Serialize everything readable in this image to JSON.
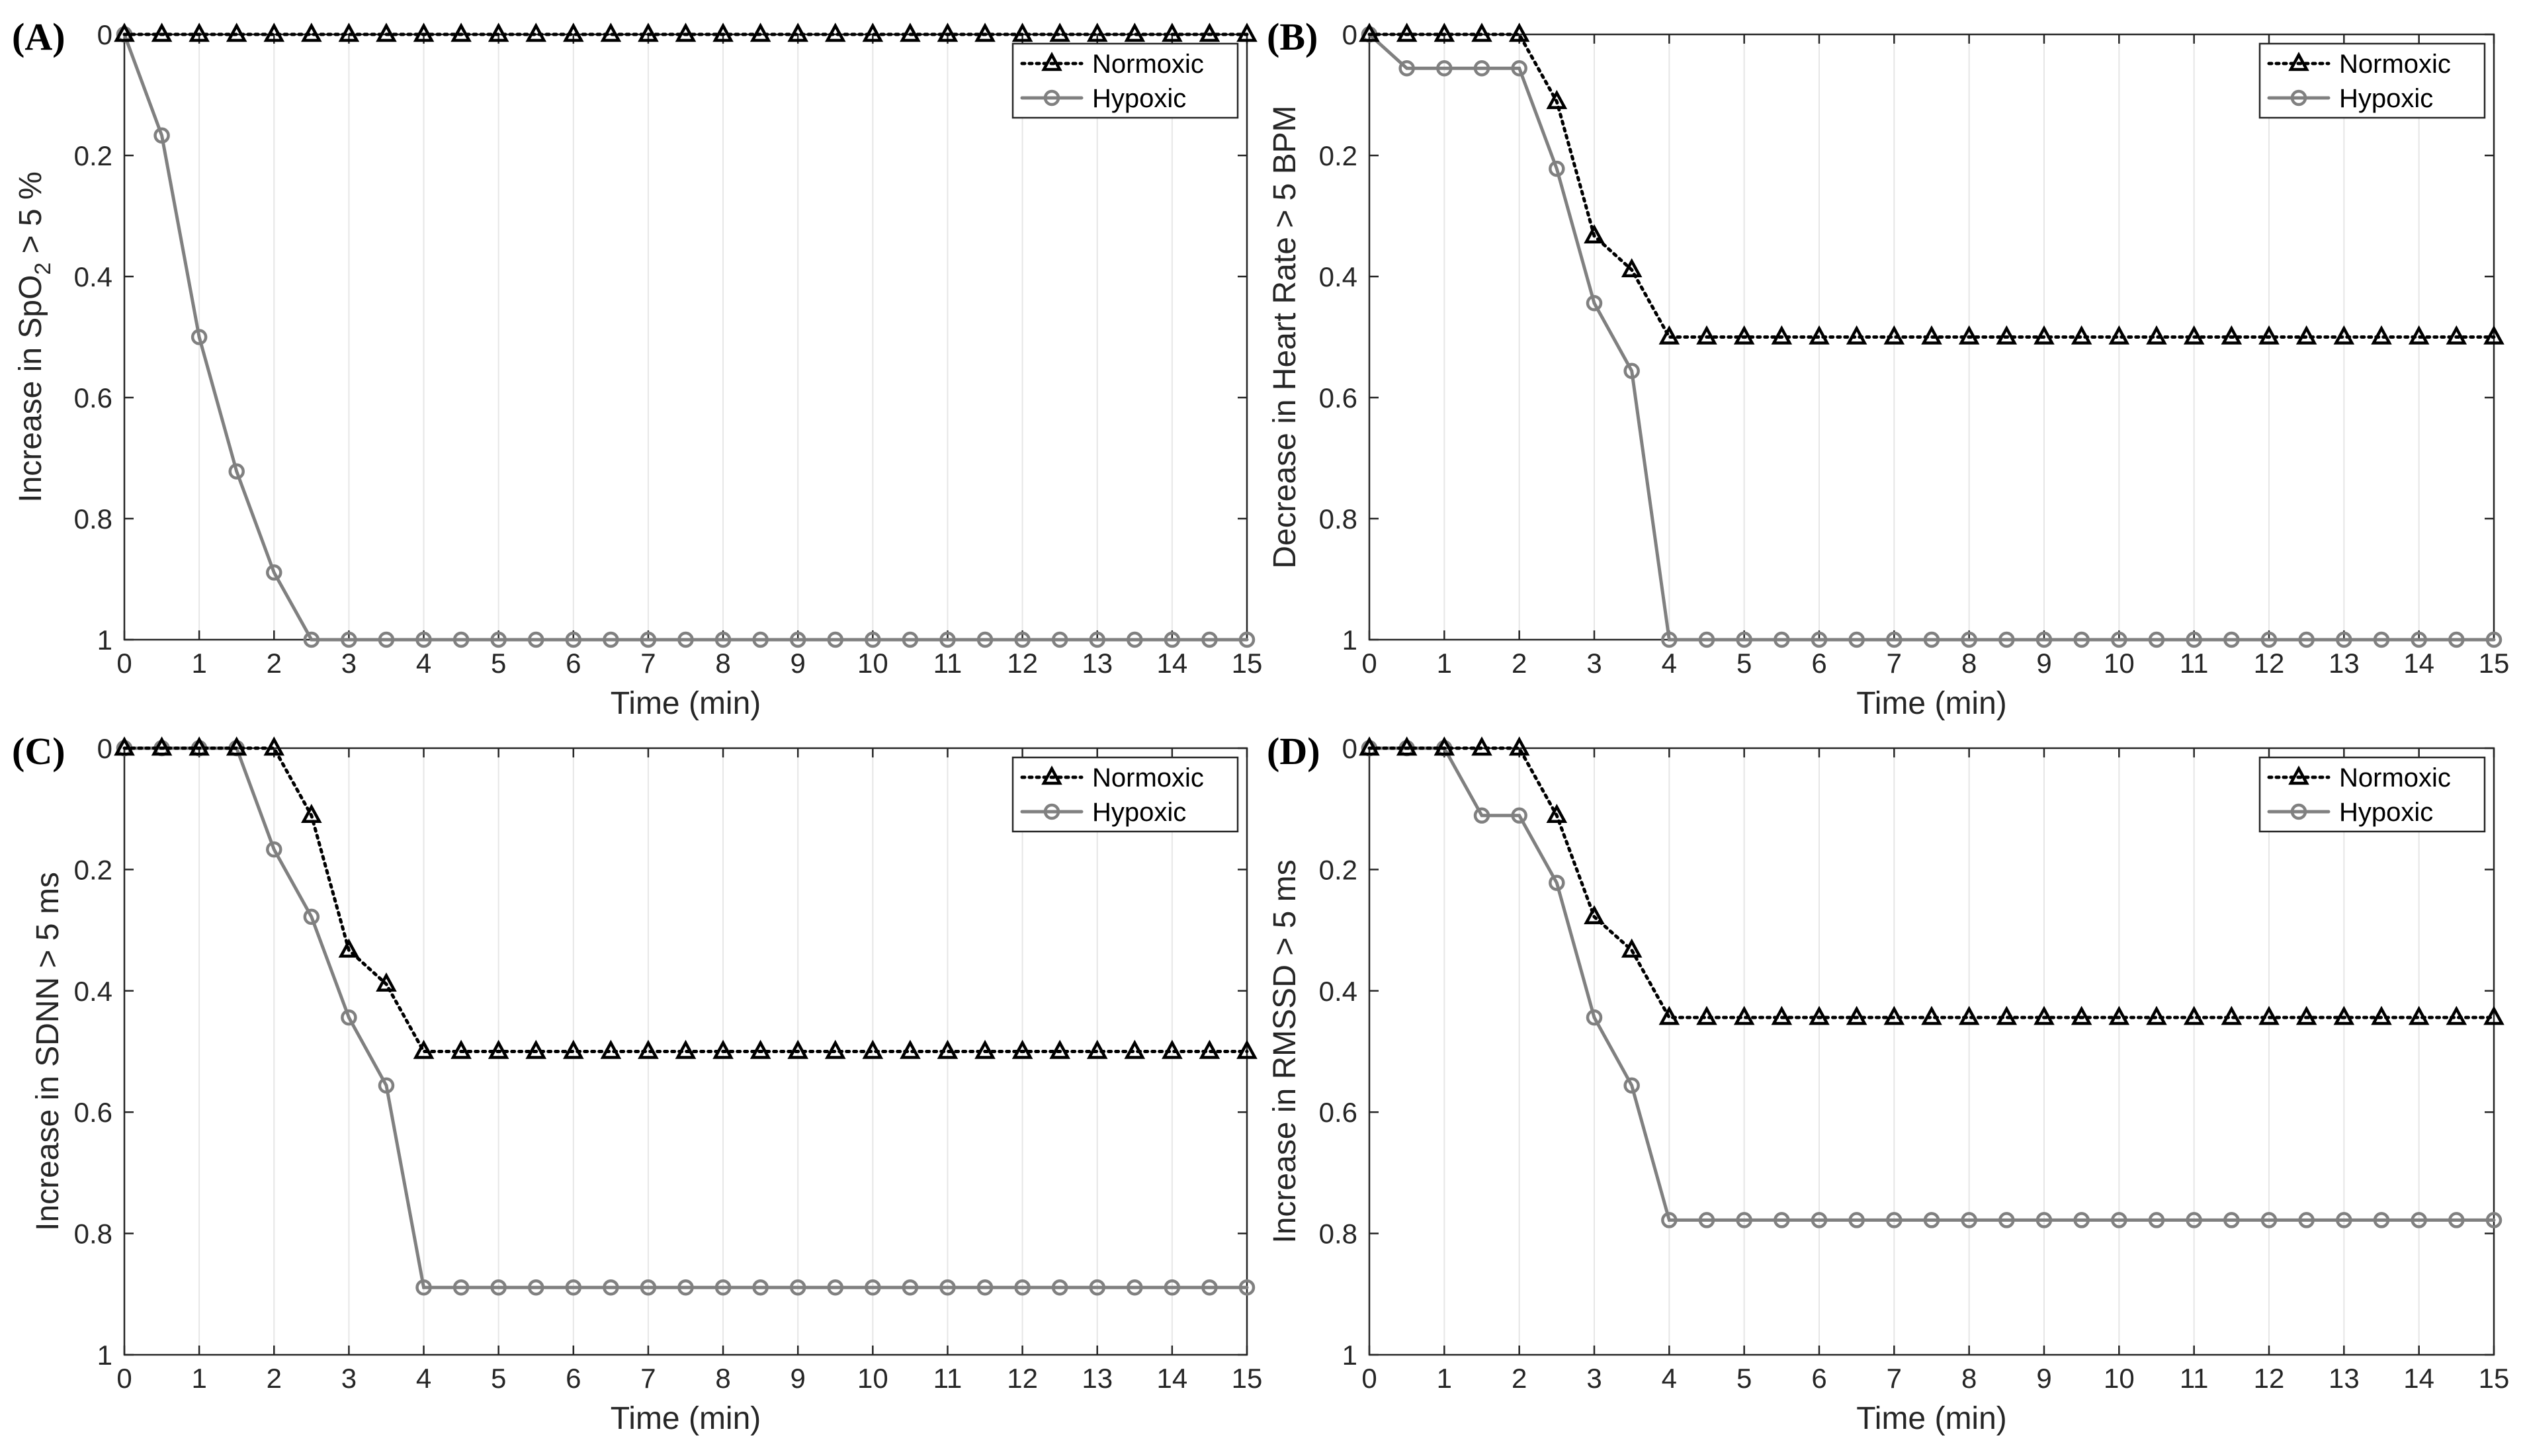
{
  "figure": {
    "x_label": "Time (min)",
    "colors": {
      "normoxic": "#000000",
      "hypoxic": "#808080",
      "grid": "#e6e6e6",
      "axes": "#262626"
    }
  },
  "chart_data": [
    {
      "type": "line",
      "panel": "(A)",
      "xlabel": "Time (min)",
      "ylabel_parts": [
        "Increase in SpO",
        "2",
        " > 5 %"
      ],
      "xlim": [
        0,
        15
      ],
      "ylim": [
        0,
        1
      ],
      "y_reversed": true,
      "xticks": [
        0,
        1,
        2,
        3,
        4,
        5,
        6,
        7,
        8,
        9,
        10,
        11,
        12,
        13,
        14,
        15
      ],
      "yticks": [
        0,
        0.2,
        0.4,
        0.6,
        0.8,
        1
      ],
      "ytick_labels": [
        "0",
        "0.2",
        "0.4",
        "0.6",
        "0.8",
        "1"
      ],
      "grid": "vertical",
      "legend": "top-right",
      "x": [
        0,
        0.5,
        1,
        1.5,
        2,
        2.5,
        3,
        3.5,
        4,
        4.5,
        5,
        5.5,
        6,
        6.5,
        7,
        7.5,
        8,
        8.5,
        9,
        9.5,
        10,
        10.5,
        11,
        11.5,
        12,
        12.5,
        13,
        13.5,
        14,
        14.5,
        15
      ],
      "series": [
        {
          "name": "Normoxic",
          "marker": "triangle",
          "line": "dotted",
          "values": [
            0,
            0,
            0,
            0,
            0,
            0,
            0,
            0,
            0,
            0,
            0,
            0,
            0,
            0,
            0,
            0,
            0,
            0,
            0,
            0,
            0,
            0,
            0,
            0,
            0,
            0,
            0,
            0,
            0,
            0,
            0
          ]
        },
        {
          "name": "Hypoxic",
          "marker": "circle",
          "line": "solid",
          "values": [
            0,
            0.167,
            0.5,
            0.722,
            0.889,
            1,
            1,
            1,
            1,
            1,
            1,
            1,
            1,
            1,
            1,
            1,
            1,
            1,
            1,
            1,
            1,
            1,
            1,
            1,
            1,
            1,
            1,
            1,
            1,
            1,
            1
          ]
        }
      ]
    },
    {
      "type": "line",
      "panel": "(B)",
      "xlabel": "Time (min)",
      "ylabel_parts": [
        "Decrease in Heart Rate > 5 BPM"
      ],
      "xlim": [
        0,
        15
      ],
      "ylim": [
        0,
        1
      ],
      "y_reversed": true,
      "xticks": [
        0,
        1,
        2,
        3,
        4,
        5,
        6,
        7,
        8,
        9,
        10,
        11,
        12,
        13,
        14,
        15
      ],
      "yticks": [
        0,
        0.2,
        0.4,
        0.6,
        0.8,
        1
      ],
      "ytick_labels": [
        "0",
        "0.2",
        "0.4",
        "0.6",
        "0.8",
        "1"
      ],
      "grid": "vertical",
      "legend": "top-right",
      "x": [
        0,
        0.5,
        1,
        1.5,
        2,
        2.5,
        3,
        3.5,
        4,
        4.5,
        5,
        5.5,
        6,
        6.5,
        7,
        7.5,
        8,
        8.5,
        9,
        9.5,
        10,
        10.5,
        11,
        11.5,
        12,
        12.5,
        13,
        13.5,
        14,
        14.5,
        15
      ],
      "series": [
        {
          "name": "Normoxic",
          "marker": "triangle",
          "line": "dotted",
          "values": [
            0,
            0,
            0,
            0,
            0,
            0.111,
            0.333,
            0.389,
            0.5,
            0.5,
            0.5,
            0.5,
            0.5,
            0.5,
            0.5,
            0.5,
            0.5,
            0.5,
            0.5,
            0.5,
            0.5,
            0.5,
            0.5,
            0.5,
            0.5,
            0.5,
            0.5,
            0.5,
            0.5,
            0.5,
            0.5
          ]
        },
        {
          "name": "Hypoxic",
          "marker": "circle",
          "line": "solid",
          "values": [
            0,
            0.056,
            0.056,
            0.056,
            0.056,
            0.222,
            0.444,
            0.556,
            1,
            1,
            1,
            1,
            1,
            1,
            1,
            1,
            1,
            1,
            1,
            1,
            1,
            1,
            1,
            1,
            1,
            1,
            1,
            1,
            1,
            1,
            1
          ]
        }
      ]
    },
    {
      "type": "line",
      "panel": "(C)",
      "xlabel": "Time (min)",
      "ylabel_parts": [
        "Increase in SDNN > 5 ms"
      ],
      "xlim": [
        0,
        15
      ],
      "ylim": [
        0,
        1
      ],
      "y_reversed": true,
      "xticks": [
        0,
        1,
        2,
        3,
        4,
        5,
        6,
        7,
        8,
        9,
        10,
        11,
        12,
        13,
        14,
        15
      ],
      "yticks": [
        0,
        0.2,
        0.4,
        0.6,
        0.8,
        1
      ],
      "ytick_labels": [
        "0",
        "0.2",
        "0.4",
        "0.6",
        "0.8",
        "1"
      ],
      "grid": "vertical",
      "legend": "top-right",
      "x": [
        0,
        0.5,
        1,
        1.5,
        2,
        2.5,
        3,
        3.5,
        4,
        4.5,
        5,
        5.5,
        6,
        6.5,
        7,
        7.5,
        8,
        8.5,
        9,
        9.5,
        10,
        10.5,
        11,
        11.5,
        12,
        12.5,
        13,
        13.5,
        14,
        14.5,
        15
      ],
      "series": [
        {
          "name": "Normoxic",
          "marker": "triangle",
          "line": "dotted",
          "values": [
            0,
            0,
            0,
            0,
            0,
            0.111,
            0.333,
            0.389,
            0.5,
            0.5,
            0.5,
            0.5,
            0.5,
            0.5,
            0.5,
            0.5,
            0.5,
            0.5,
            0.5,
            0.5,
            0.5,
            0.5,
            0.5,
            0.5,
            0.5,
            0.5,
            0.5,
            0.5,
            0.5,
            0.5,
            0.5
          ]
        },
        {
          "name": "Hypoxic",
          "marker": "circle",
          "line": "solid",
          "values": [
            0,
            0,
            0,
            0,
            0.167,
            0.278,
            0.444,
            0.556,
            0.889,
            0.889,
            0.889,
            0.889,
            0.889,
            0.889,
            0.889,
            0.889,
            0.889,
            0.889,
            0.889,
            0.889,
            0.889,
            0.889,
            0.889,
            0.889,
            0.889,
            0.889,
            0.889,
            0.889,
            0.889,
            0.889,
            0.889
          ]
        }
      ]
    },
    {
      "type": "line",
      "panel": "(D)",
      "xlabel": "Time (min)",
      "ylabel_parts": [
        "Increase in RMSSD > 5 ms"
      ],
      "xlim": [
        0,
        15
      ],
      "ylim": [
        0,
        1
      ],
      "y_reversed": true,
      "xticks": [
        0,
        1,
        2,
        3,
        4,
        5,
        6,
        7,
        8,
        9,
        10,
        11,
        12,
        13,
        14,
        15
      ],
      "yticks": [
        0,
        0.2,
        0.4,
        0.6,
        0.8,
        1
      ],
      "ytick_labels": [
        "0",
        "0.2",
        "0.4",
        "0.6",
        "0.8",
        "1"
      ],
      "grid": "vertical",
      "legend": "top-right",
      "x": [
        0,
        0.5,
        1,
        1.5,
        2,
        2.5,
        3,
        3.5,
        4,
        4.5,
        5,
        5.5,
        6,
        6.5,
        7,
        7.5,
        8,
        8.5,
        9,
        9.5,
        10,
        10.5,
        11,
        11.5,
        12,
        12.5,
        13,
        13.5,
        14,
        14.5,
        15
      ],
      "series": [
        {
          "name": "Normoxic",
          "marker": "triangle",
          "line": "dotted",
          "values": [
            0,
            0,
            0,
            0,
            0,
            0.111,
            0.278,
            0.333,
            0.444,
            0.444,
            0.444,
            0.444,
            0.444,
            0.444,
            0.444,
            0.444,
            0.444,
            0.444,
            0.444,
            0.444,
            0.444,
            0.444,
            0.444,
            0.444,
            0.444,
            0.444,
            0.444,
            0.444,
            0.444,
            0.444,
            0.444
          ]
        },
        {
          "name": "Hypoxic",
          "marker": "circle",
          "line": "solid",
          "values": [
            0,
            0,
            0,
            0.111,
            0.111,
            0.222,
            0.444,
            0.556,
            0.778,
            0.778,
            0.778,
            0.778,
            0.778,
            0.778,
            0.778,
            0.778,
            0.778,
            0.778,
            0.778,
            0.778,
            0.778,
            0.778,
            0.778,
            0.778,
            0.778,
            0.778,
            0.778,
            0.778,
            0.778,
            0.778,
            0.778
          ]
        }
      ]
    }
  ]
}
